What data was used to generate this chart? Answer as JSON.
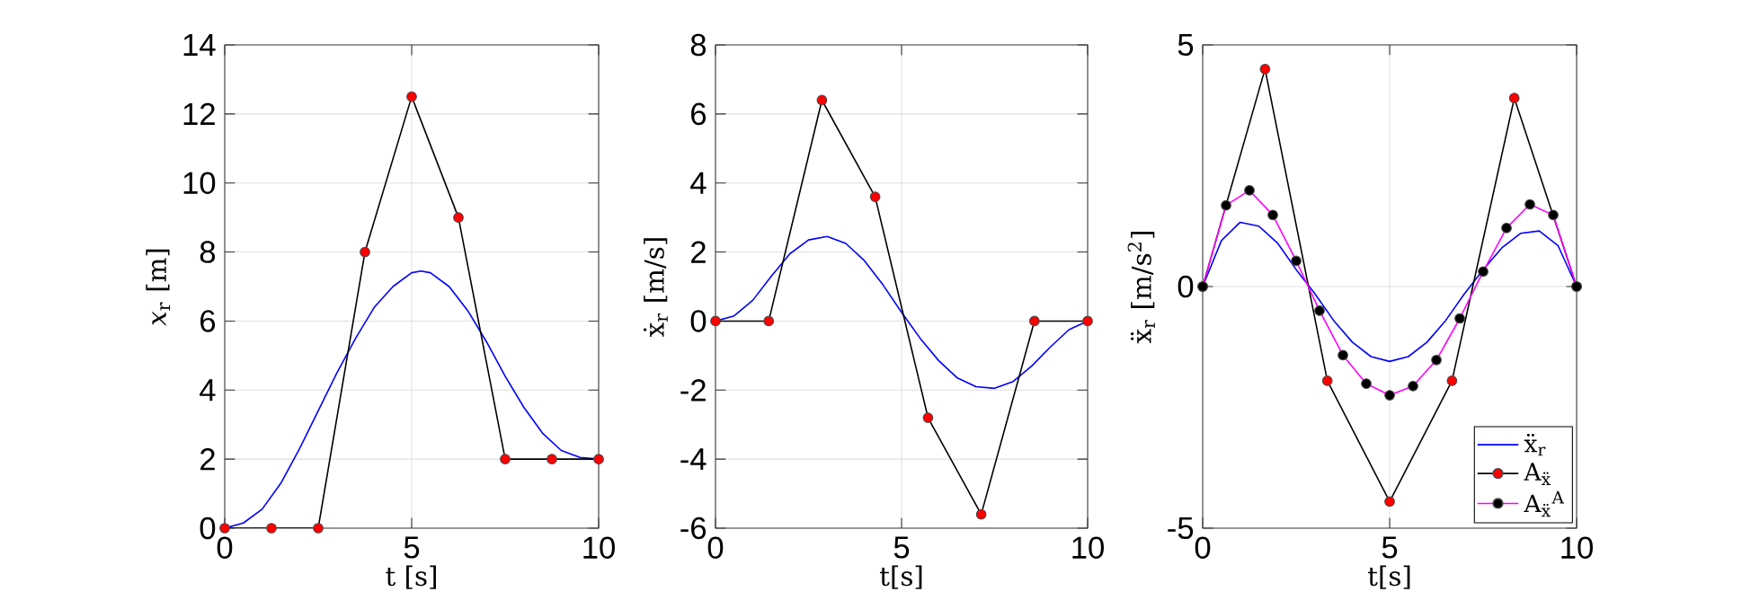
{
  "chart_data": [
    {
      "type": "line",
      "xlabel": "t [s]",
      "ylabel": "*x*$_{r}$ [m]",
      "xlim": [
        0,
        10
      ],
      "ylim": [
        0,
        14
      ],
      "xticks": [
        0,
        5,
        10
      ],
      "yticks": [
        0,
        2,
        4,
        6,
        8,
        10,
        12,
        14
      ],
      "grid": true,
      "legend": false,
      "series": [
        {
          "color": "#0000ff",
          "marker": "none",
          "x": [
            0,
            0.5,
            1,
            1.5,
            2,
            2.5,
            3,
            3.5,
            4,
            4.5,
            5,
            5.25,
            5.5,
            6,
            6.5,
            7,
            7.5,
            8,
            8.5,
            9,
            9.5,
            10
          ],
          "values": [
            0,
            0.15,
            0.55,
            1.3,
            2.3,
            3.4,
            4.5,
            5.5,
            6.4,
            7.0,
            7.4,
            7.45,
            7.4,
            7.0,
            6.3,
            5.4,
            4.4,
            3.5,
            2.75,
            2.25,
            2.05,
            2.0
          ]
        },
        {
          "color": "#000000",
          "marker": "circle",
          "colors": [
            "#ff0000",
            "#ff0000",
            "#ff0000",
            "#ff0000",
            "#ff0000",
            "#ff0000",
            "#ff0000",
            "#ff0000",
            "#ff0000"
          ],
          "x": [
            0,
            1.25,
            2.5,
            3.75,
            5,
            6.25,
            7.5,
            8.75,
            10
          ],
          "values": [
            0,
            0,
            0,
            8,
            12.5,
            9,
            2,
            2,
            2
          ]
        }
      ]
    },
    {
      "type": "line",
      "xlabel": "t[s]",
      "ylabel": "ẋ$_{r}$ [m/s]",
      "xlim": [
        0,
        10
      ],
      "ylim": [
        -6,
        8
      ],
      "xticks": [
        0,
        5,
        10
      ],
      "yticks": [
        -6,
        -4,
        -2,
        0,
        2,
        4,
        6,
        8
      ],
      "grid": true,
      "legend": false,
      "series": [
        {
          "color": "#0000ff",
          "marker": "none",
          "x": [
            0,
            0.5,
            1,
            1.5,
            2,
            2.5,
            3,
            3.5,
            4,
            4.5,
            5,
            5.5,
            6,
            6.5,
            7,
            7.5,
            8,
            8.5,
            9,
            9.5,
            10
          ],
          "values": [
            0,
            0.15,
            0.6,
            1.3,
            1.95,
            2.35,
            2.45,
            2.25,
            1.75,
            1.05,
            0.25,
            -0.5,
            -1.15,
            -1.65,
            -1.9,
            -1.95,
            -1.75,
            -1.3,
            -0.75,
            -0.25,
            0
          ]
        },
        {
          "color": "#000000",
          "marker": "circle",
          "colors": [
            "#ff0000",
            "#ff0000",
            "#ff0000",
            "#ff0000",
            "#ff0000",
            "#ff0000",
            "#ff0000",
            "#ff0000"
          ],
          "x": [
            0,
            1.43,
            2.86,
            4.29,
            5.71,
            7.14,
            8.57,
            10
          ],
          "values": [
            0,
            0,
            6.4,
            3.6,
            -2.8,
            -5.6,
            0,
            0
          ]
        }
      ]
    },
    {
      "type": "line",
      "xlabel": "t[s]",
      "ylabel": "ẍ$_{r}$ [m/s$^{2}$]",
      "xlim": [
        0,
        10
      ],
      "ylim": [
        -5,
        5
      ],
      "xticks": [
        0,
        5,
        10
      ],
      "yticks": [
        -5,
        0,
        5
      ],
      "grid": true,
      "legend": "bottom right",
      "series": [
        {
          "name": "ẍ$_{r}$",
          "color": "#0000ff",
          "marker": "none",
          "x": [
            0,
            0.5,
            1,
            1.5,
            2,
            2.5,
            3,
            3.5,
            4,
            4.5,
            5,
            5.5,
            6,
            6.5,
            7,
            7.5,
            8,
            8.5,
            9,
            9.5,
            10
          ],
          "values": [
            0,
            0.95,
            1.33,
            1.25,
            0.9,
            0.35,
            -0.15,
            -0.7,
            -1.15,
            -1.45,
            -1.55,
            -1.45,
            -1.15,
            -0.7,
            -0.15,
            0.35,
            0.8,
            1.1,
            1.15,
            0.85,
            0
          ]
        },
        {
          "name": "A$_{ẍ}$",
          "color": "#000000",
          "marker": "circle",
          "colors": [
            "#ff0000",
            "#ff0000",
            "#ff0000",
            "#ff0000",
            "#ff0000",
            "#ff0000",
            "#ff0000"
          ],
          "x": [
            0,
            1.667,
            3.333,
            5,
            6.667,
            8.333,
            10
          ],
          "values": [
            0,
            4.5,
            -1.95,
            -4.45,
            -1.95,
            3.9,
            0
          ]
        },
        {
          "name": "A$_{ẍ}$$^{A}$",
          "color": "#ff00ff",
          "marker": "circle",
          "colors": [
            "#000000",
            "#000000",
            "#000000",
            "#000000",
            "#000000",
            "#000000",
            "#000000",
            "#000000",
            "#000000",
            "#000000",
            "#000000",
            "#000000",
            "#000000",
            "#000000",
            "#000000",
            "#000000",
            "#000000"
          ],
          "x": [
            0,
            0.625,
            1.25,
            1.875,
            2.5,
            3.125,
            3.75,
            4.375,
            5,
            5.625,
            6.25,
            6.875,
            7.5,
            8.125,
            8.75,
            9.375,
            10
          ],
          "values": [
            0,
            1.68,
            1.99,
            1.48,
            0.53,
            -0.5,
            -1.42,
            -2.01,
            -2.25,
            -2.06,
            -1.52,
            -0.66,
            0.31,
            1.21,
            1.7,
            1.48,
            0
          ]
        }
      ]
    }
  ]
}
